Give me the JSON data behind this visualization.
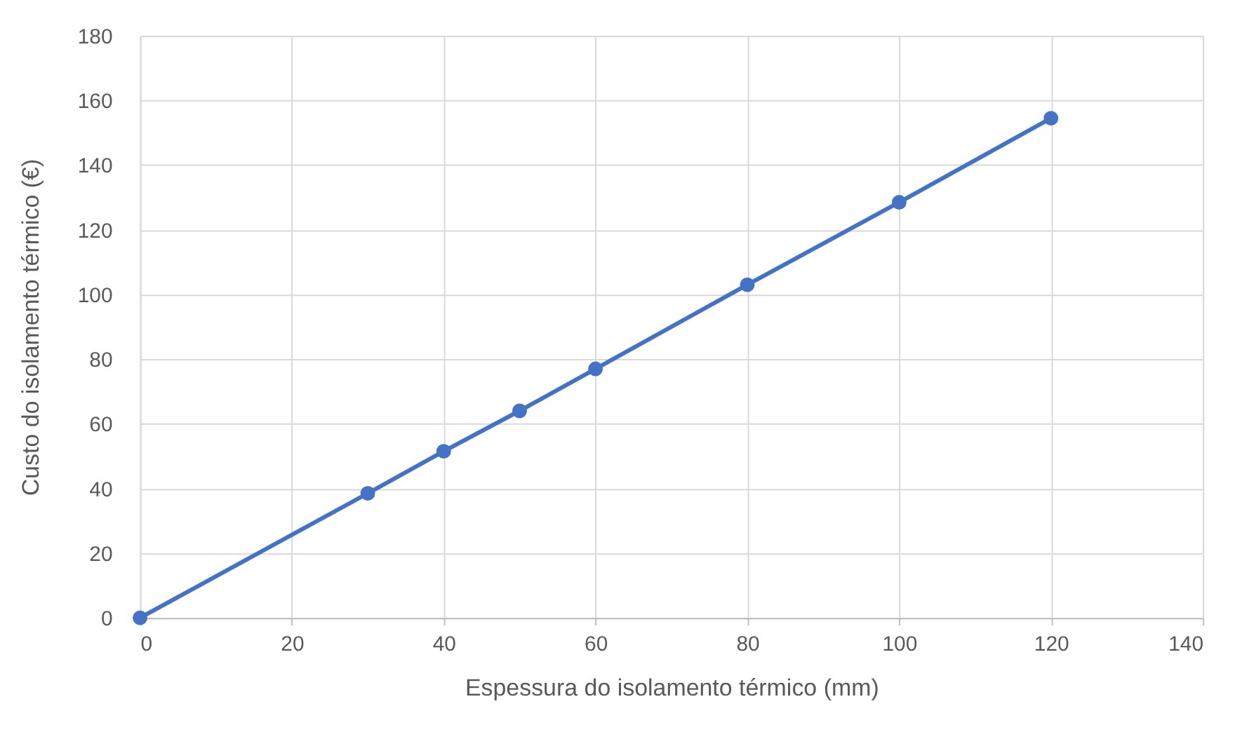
{
  "chart_data": {
    "type": "line",
    "xlabel": "Espessura do isolamento térmico (mm)",
    "ylabel": "Custo do isolamento térmico (€)",
    "x": [
      0,
      30,
      40,
      50,
      60,
      80,
      100,
      120
    ],
    "series": [
      {
        "color": "#4472c4",
        "values": [
          0,
          38.5,
          51.5,
          64,
          77,
          103,
          128.5,
          154.5
        ]
      }
    ],
    "xlim": [
      0,
      140
    ],
    "xticks": [
      0,
      20,
      40,
      60,
      80,
      100,
      120,
      140
    ],
    "ylim": [
      0,
      180
    ],
    "yticks": [
      0,
      20,
      40,
      60,
      80,
      100,
      120,
      140,
      160,
      180
    ],
    "grid": true,
    "marker": "circle",
    "line_style": "solid"
  }
}
